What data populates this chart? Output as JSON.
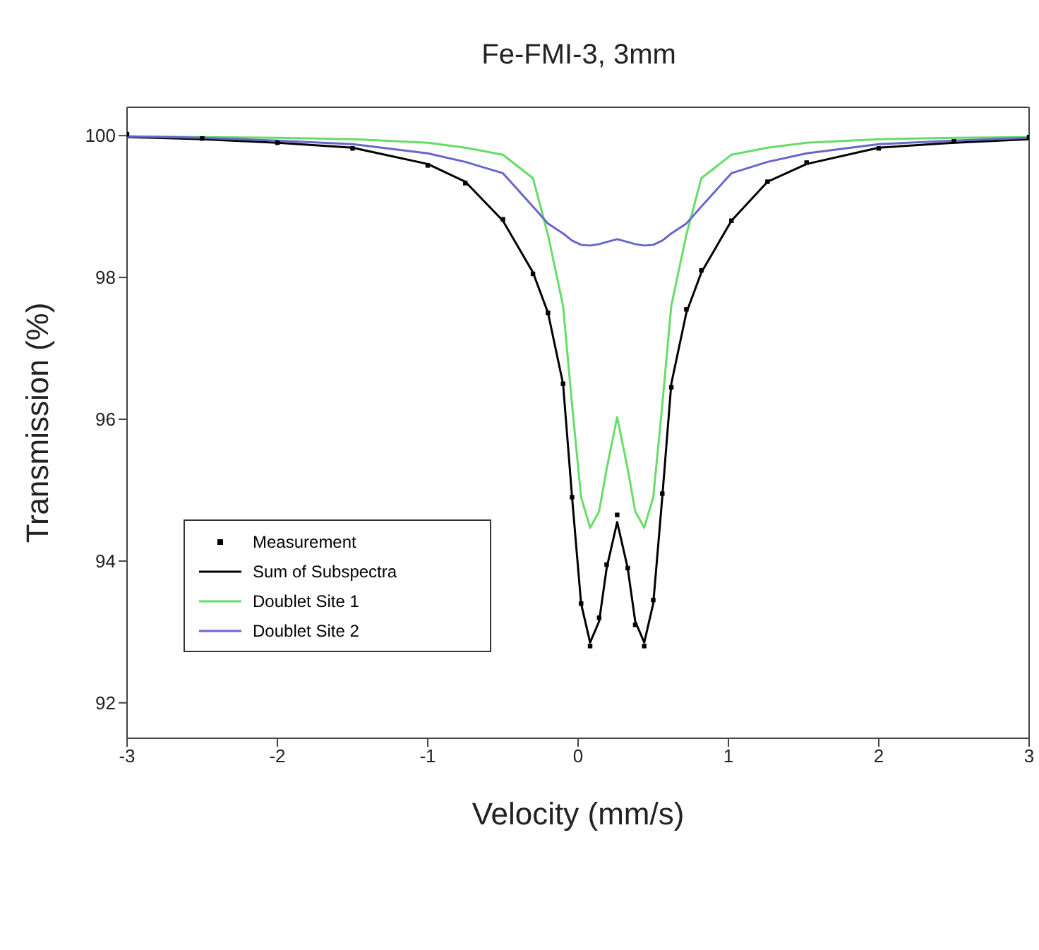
{
  "chart_data": {
    "type": "line",
    "title": "Fe-FMI-3, 3mm",
    "xlabel": "Velocity (mm/s)",
    "ylabel": "Transmission (%)",
    "x": [
      -3,
      -2.5,
      -2,
      -1.5,
      -1,
      -0.75,
      -0.5,
      -0.3,
      -0.2,
      -0.1,
      -0.04,
      0.02,
      0.08,
      0.14,
      0.19,
      0.26,
      0.33,
      0.38,
      0.44,
      0.5,
      0.56,
      0.62,
      0.72,
      0.82,
      1.02,
      1.26,
      1.52,
      2,
      2.5,
      3
    ],
    "series": [
      {
        "name": "Measurement",
        "type": "scatter",
        "marker": "square",
        "color": "#000000",
        "values": [
          100.02,
          99.96,
          99.9,
          99.82,
          99.58,
          99.33,
          98.82,
          98.05,
          97.5,
          96.5,
          94.9,
          93.4,
          92.8,
          93.2,
          93.95,
          94.65,
          93.9,
          93.1,
          92.8,
          93.45,
          94.95,
          96.45,
          97.55,
          98.1,
          98.8,
          99.35,
          99.62,
          99.82,
          99.92,
          99.98
        ]
      },
      {
        "name": "Sum of Subspectra",
        "color": "#000000",
        "values": [
          99.98,
          99.95,
          99.9,
          99.83,
          99.6,
          99.35,
          98.8,
          98.07,
          97.5,
          96.5,
          94.9,
          93.4,
          92.85,
          93.15,
          93.9,
          94.55,
          93.9,
          93.15,
          92.85,
          93.4,
          94.9,
          96.5,
          97.5,
          98.07,
          98.8,
          99.35,
          99.6,
          99.83,
          99.9,
          99.95
        ]
      },
      {
        "name": "Doublet Site 1",
        "color": "#66dd66",
        "values": [
          99.99,
          99.98,
          99.97,
          99.95,
          99.9,
          99.83,
          99.73,
          99.4,
          98.6,
          97.6,
          96.2,
          94.9,
          94.47,
          94.7,
          95.3,
          96.03,
          95.3,
          94.7,
          94.47,
          94.9,
          96.2,
          97.6,
          98.6,
          99.4,
          99.73,
          99.83,
          99.9,
          99.95,
          99.97,
          99.98
        ]
      },
      {
        "name": "Doublet Site 2",
        "color": "#6666cc",
        "values": [
          99.99,
          99.97,
          99.93,
          99.88,
          99.75,
          99.63,
          99.47,
          99.0,
          98.76,
          98.62,
          98.52,
          98.46,
          98.45,
          98.47,
          98.5,
          98.54,
          98.5,
          98.47,
          98.45,
          98.46,
          98.52,
          98.62,
          98.76,
          99.0,
          99.47,
          99.63,
          99.75,
          99.88,
          99.93,
          99.97
        ]
      }
    ],
    "xlim": [
      -3,
      3
    ],
    "xticks": [
      -3,
      -2,
      -1,
      0,
      1,
      2,
      3
    ],
    "ylim": [
      91.5,
      100.4
    ],
    "yticks": [
      92,
      94,
      96,
      98,
      100
    ],
    "legend": "bottom left"
  }
}
